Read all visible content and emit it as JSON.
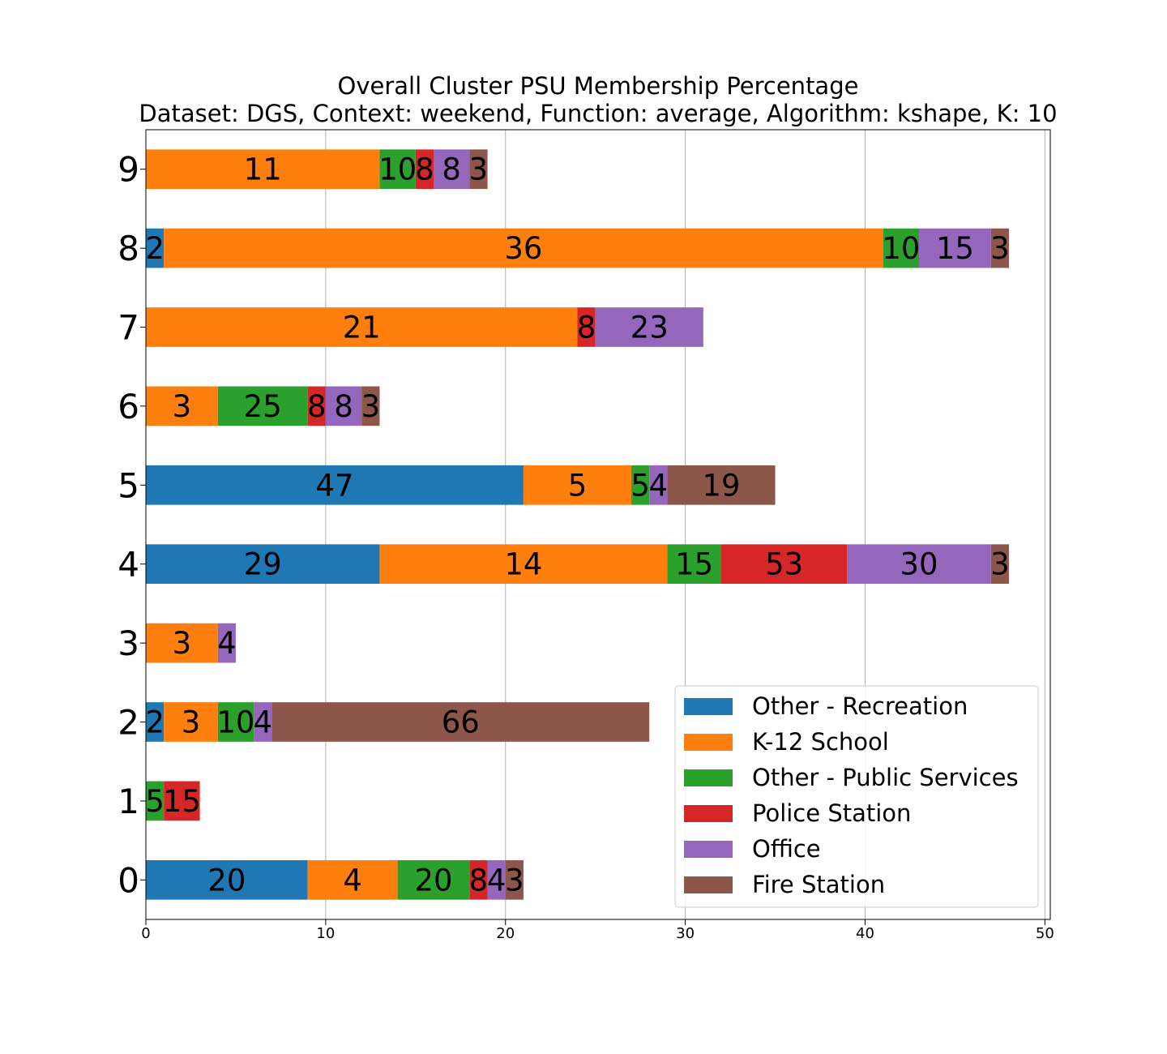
{
  "chart_data": {
    "type": "bar",
    "orientation": "horizontal",
    "stacked": true,
    "title": "Overall Cluster  PSU Membership Percentage",
    "subtitle": "Dataset: DGS, Context: weekend, Function: average, Algorithm: kshape, K: 10",
    "xlabel": "",
    "ylabel": "",
    "xlim": [
      0,
      50.3
    ],
    "xticks": [
      0,
      10,
      20,
      30,
      40,
      50
    ],
    "grid": "vertical",
    "legend_position": "bottom-right",
    "categories": [
      "0",
      "1",
      "2",
      "3",
      "4",
      "5",
      "6",
      "7",
      "8",
      "9"
    ],
    "series": [
      {
        "name": "Other - Recreation",
        "color": "#1f77b4",
        "values": [
          9,
          0,
          1,
          0,
          13,
          21,
          0,
          0,
          1,
          0
        ],
        "labels": [
          "20",
          "",
          "2",
          "",
          "29",
          "47",
          "",
          "",
          "2",
          ""
        ]
      },
      {
        "name": "K-12 School",
        "color": "#ff7f0e",
        "values": [
          5,
          0,
          3,
          4,
          16,
          6,
          4,
          24,
          40,
          13
        ],
        "labels": [
          "4",
          "",
          "3",
          "3",
          "14",
          "5",
          "3",
          "21",
          "36",
          "11"
        ]
      },
      {
        "name": "Other - Public Services",
        "color": "#2ca02c",
        "values": [
          4,
          1,
          2,
          0,
          3,
          1,
          5,
          0,
          2,
          2
        ],
        "labels": [
          "20",
          "5",
          "10",
          "",
          "15",
          "5",
          "25",
          "",
          "10",
          "10"
        ]
      },
      {
        "name": "Police Station",
        "color": "#d62728",
        "values": [
          1,
          2,
          0,
          0,
          7,
          0,
          1,
          1,
          0,
          1
        ],
        "labels": [
          "8",
          "15",
          "",
          "",
          "53",
          "",
          "8",
          "8",
          "",
          "8"
        ]
      },
      {
        "name": "Office",
        "color": "#9467bd",
        "values": [
          1,
          0,
          1,
          1,
          8,
          1,
          2,
          6,
          4,
          2
        ],
        "labels": [
          "4",
          "",
          "4",
          "4",
          "30",
          "4",
          "8",
          "23",
          "15",
          "8"
        ]
      },
      {
        "name": "Fire Station",
        "color": "#8c564b",
        "values": [
          1,
          0,
          21,
          0,
          1,
          6,
          1,
          0,
          1,
          1
        ],
        "labels": [
          "3",
          "",
          "66",
          "",
          "3",
          "19",
          "3",
          "",
          "3",
          "3"
        ]
      }
    ]
  }
}
